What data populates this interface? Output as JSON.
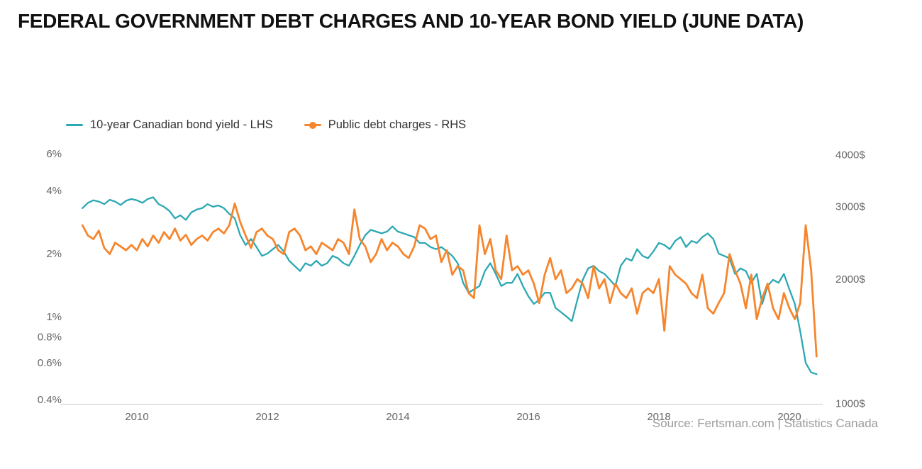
{
  "title": "FEDERAL GOVERNMENT DEBT CHARGES AND 10-YEAR BOND YIELD (JUNE DATA)",
  "legend": [
    {
      "label": "10-year Canadian bond yield - LHS",
      "color": "#2BA8B4"
    },
    {
      "label": "Public debt charges - RHS",
      "color": "#F6862E"
    }
  ],
  "source": "Source: Fertsman.com | Statistics Canada",
  "chart_data": {
    "type": "line",
    "title": "FEDERAL GOVERNMENT DEBT CHARGES AND 10-YEAR BOND YIELD (JUNE DATA)",
    "x_start": 2009.1667,
    "x_step": 0.083333,
    "x_axis": {
      "ticks": [
        2010,
        2012,
        2014,
        2016,
        2018,
        2020
      ],
      "range": [
        2009.1,
        2020.6
      ],
      "grid": false
    },
    "left_axis": {
      "unit": "%",
      "scale": "log",
      "ticks": [
        "6%",
        "4%",
        "2%",
        "1%",
        "0.8%",
        "0.6%",
        "0.4%"
      ],
      "tick_values": [
        6,
        4,
        2,
        1,
        0.8,
        0.6,
        0.4
      ]
    },
    "right_axis": {
      "unit": "$",
      "scale": "log",
      "ticks": [
        "4000$",
        "3000$",
        "2000$",
        "1000$"
      ],
      "tick_values": [
        4000,
        3000,
        2000,
        1000
      ]
    },
    "series": [
      {
        "name": "10-year Canadian bond yield - LHS",
        "axis": "left",
        "color": "#2BA8B4",
        "values": [
          3.3,
          3.5,
          3.6,
          3.55,
          3.45,
          3.62,
          3.55,
          3.42,
          3.58,
          3.65,
          3.6,
          3.5,
          3.65,
          3.72,
          3.45,
          3.35,
          3.2,
          2.95,
          3.05,
          2.9,
          3.15,
          3.25,
          3.3,
          3.45,
          3.35,
          3.4,
          3.3,
          3.1,
          2.95,
          2.45,
          2.2,
          2.35,
          2.15,
          1.95,
          2.0,
          2.1,
          2.2,
          2.05,
          1.85,
          1.75,
          1.65,
          1.8,
          1.75,
          1.85,
          1.75,
          1.8,
          1.95,
          1.9,
          1.8,
          1.75,
          1.95,
          2.2,
          2.45,
          2.6,
          2.55,
          2.5,
          2.55,
          2.7,
          2.55,
          2.5,
          2.45,
          2.4,
          2.25,
          2.25,
          2.15,
          2.1,
          2.15,
          2.05,
          1.95,
          1.8,
          1.45,
          1.3,
          1.35,
          1.4,
          1.65,
          1.8,
          1.6,
          1.4,
          1.45,
          1.45,
          1.6,
          1.4,
          1.25,
          1.15,
          1.2,
          1.3,
          1.3,
          1.1,
          1.05,
          1.0,
          0.95,
          1.2,
          1.5,
          1.7,
          1.75,
          1.65,
          1.6,
          1.5,
          1.4,
          1.75,
          1.9,
          1.85,
          2.1,
          1.95,
          1.9,
          2.05,
          2.25,
          2.2,
          2.1,
          2.3,
          2.4,
          2.15,
          2.3,
          2.25,
          2.4,
          2.5,
          2.35,
          2.0,
          1.95,
          1.9,
          1.6,
          1.7,
          1.65,
          1.45,
          1.6,
          1.15,
          1.4,
          1.5,
          1.45,
          1.6,
          1.35,
          1.15,
          0.85,
          0.6,
          0.54,
          0.53
        ]
      },
      {
        "name": "Public debt charges - RHS",
        "axis": "right",
        "color": "#F6862E",
        "values": [
          2700,
          2550,
          2500,
          2620,
          2380,
          2300,
          2450,
          2400,
          2350,
          2420,
          2350,
          2500,
          2400,
          2550,
          2450,
          2600,
          2500,
          2650,
          2480,
          2560,
          2420,
          2500,
          2550,
          2480,
          2600,
          2650,
          2580,
          2700,
          3050,
          2750,
          2550,
          2380,
          2600,
          2650,
          2550,
          2500,
          2350,
          2300,
          2600,
          2650,
          2550,
          2350,
          2400,
          2300,
          2450,
          2400,
          2350,
          2500,
          2450,
          2300,
          2950,
          2500,
          2400,
          2200,
          2300,
          2500,
          2350,
          2450,
          2400,
          2300,
          2250,
          2400,
          2700,
          2650,
          2500,
          2550,
          2200,
          2350,
          2050,
          2150,
          2100,
          1850,
          1800,
          2700,
          2300,
          2500,
          2100,
          2000,
          2550,
          2100,
          2150,
          2050,
          2100,
          1950,
          1750,
          2050,
          2250,
          2000,
          2100,
          1850,
          1900,
          2000,
          1950,
          1800,
          2150,
          1900,
          2000,
          1750,
          1950,
          1850,
          1800,
          1900,
          1650,
          1850,
          1900,
          1850,
          2000,
          1500,
          2150,
          2050,
          2000,
          1950,
          1850,
          1800,
          2050,
          1700,
          1650,
          1750,
          1850,
          2300,
          2100,
          1950,
          1700,
          2050,
          1600,
          1800,
          1950,
          1700,
          1600,
          1850,
          1700,
          1600,
          1750,
          2700,
          2100,
          1300
        ]
      }
    ]
  }
}
